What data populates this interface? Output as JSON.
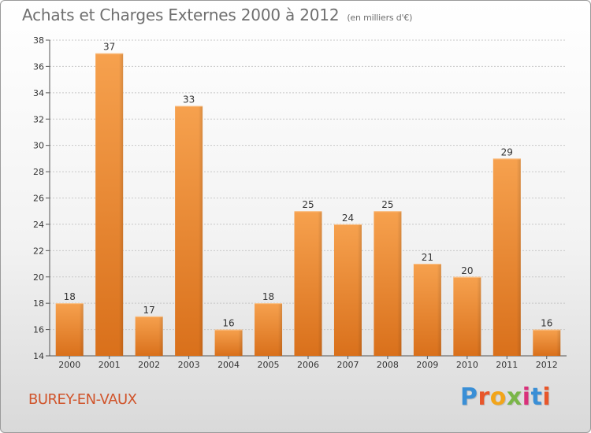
{
  "header": {
    "title": "Achats et Charges Externes 2000 à 2012",
    "subtitle": "(en milliers d'€)"
  },
  "footer": {
    "commune": "BUREY-EN-VAUX",
    "logo_text": "Proxiti",
    "logo_colors": [
      "#3a8fd6",
      "#e8562a",
      "#f2a51a",
      "#7ab648",
      "#d9307a",
      "#3a8fd6",
      "#e8562a"
    ]
  },
  "chart_data": {
    "type": "bar",
    "title": "Achats et Charges Externes 2000 à 2012",
    "subtitle": "(en milliers d'€)",
    "categories": [
      "2000",
      "2001",
      "2002",
      "2003",
      "2004",
      "2005",
      "2006",
      "2007",
      "2008",
      "2009",
      "2010",
      "2011",
      "2012"
    ],
    "values": [
      18,
      37,
      17,
      33,
      16,
      18,
      25,
      24,
      25,
      21,
      20,
      29,
      16
    ],
    "ylim": [
      14,
      38
    ],
    "yticks": [
      14,
      16,
      18,
      20,
      22,
      24,
      26,
      28,
      30,
      32,
      34,
      36,
      38
    ],
    "grid": true,
    "bar_color_top": "#f6a14e",
    "bar_color_bottom": "#d9701b",
    "xlabel": "",
    "ylabel": ""
  }
}
